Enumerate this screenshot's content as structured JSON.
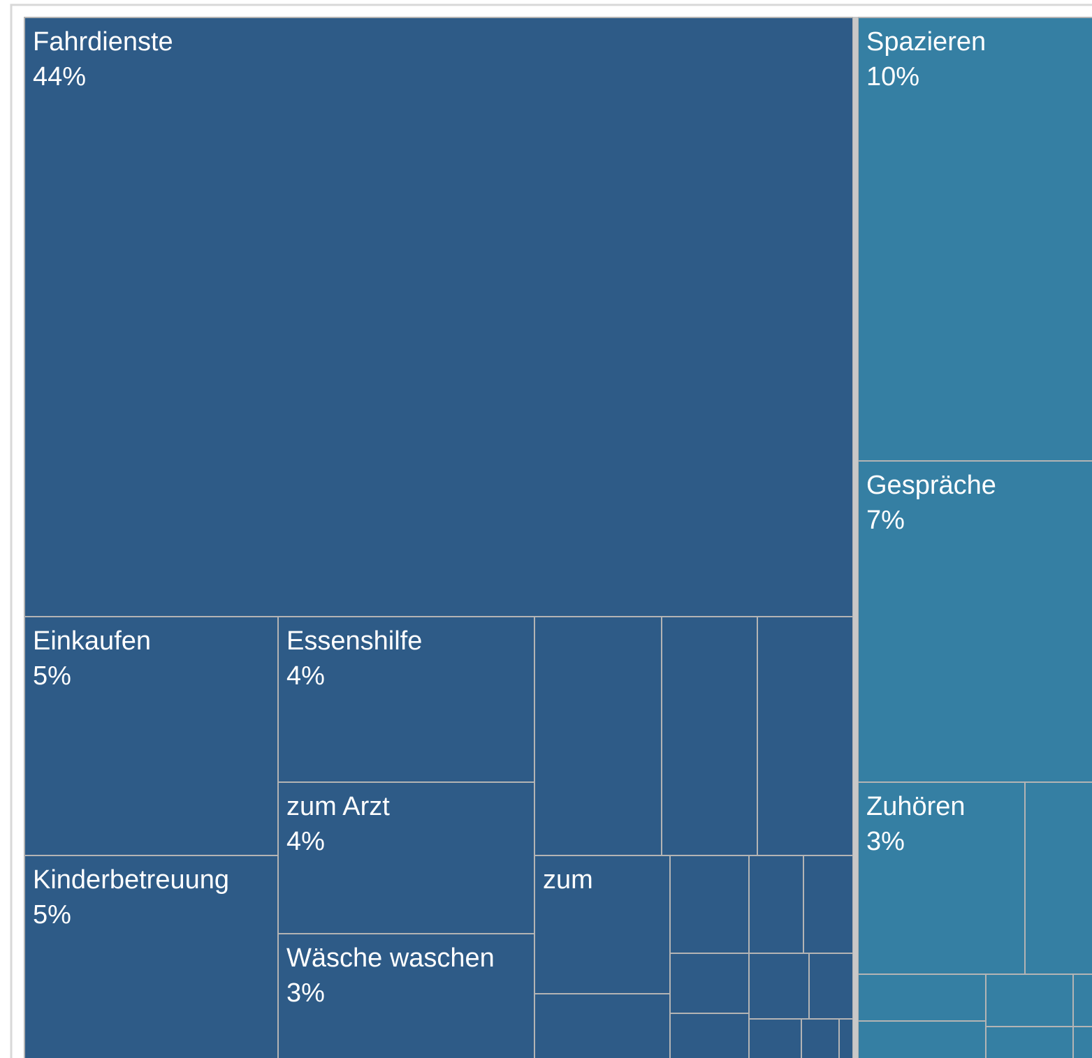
{
  "chart_data": {
    "type": "treemap",
    "series": [
      {
        "color": "#2e5b87",
        "categories": [
          "Fahrdienste",
          "Einkaufen",
          "Kinderbetreuung",
          "Essenshilfe",
          "zum Arzt",
          "Wäsche waschen",
          null,
          null,
          null,
          "zum",
          null,
          null,
          null,
          null,
          null,
          null,
          null,
          null,
          null,
          null,
          null
        ],
        "values": [
          44,
          5,
          5,
          4,
          4,
          3,
          2.7,
          2,
          2,
          1.6,
          1,
          0.7,
          0.5,
          0.4,
          0.4,
          0.3,
          0.25,
          0.3,
          0.2,
          0.15,
          0.05
        ],
        "value_labels": [
          "44%",
          "5%",
          "5%",
          "4%",
          "4%",
          "3%",
          null,
          null,
          null,
          null,
          null,
          null,
          null,
          null,
          null,
          null,
          null,
          null,
          null,
          null,
          null
        ]
      },
      {
        "color": "#357fa3",
        "categories": [
          "Spazieren",
          "Gespräche",
          "Zuhören",
          null,
          null,
          null,
          null,
          null,
          null,
          null
        ],
        "values": [
          10,
          7,
          3,
          2,
          0.5,
          0.4,
          0.3,
          0.4,
          0.3,
          0.2
        ],
        "value_labels": [
          "10%",
          "7%",
          "3%",
          null,
          null,
          null,
          null,
          null,
          null,
          null
        ]
      }
    ]
  }
}
